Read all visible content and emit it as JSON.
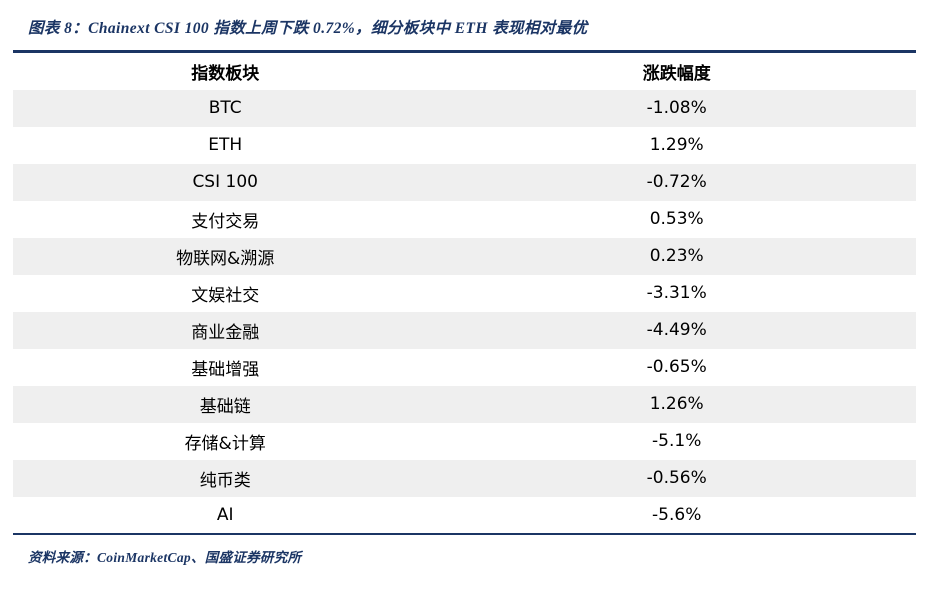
{
  "title": "图表 8：Chainext CSI 100 指数上周下跌 0.72%，细分板块中 ETH 表现相对最优",
  "source": "资料来源：CoinMarketCap、国盛证券研究所",
  "table": {
    "headers": [
      "指数板块",
      "涨跌幅度"
    ],
    "rows": [
      [
        "BTC",
        "-1.08%"
      ],
      [
        "ETH",
        "1.29%"
      ],
      [
        "CSI 100",
        "-0.72%"
      ],
      [
        "支付交易",
        "0.53%"
      ],
      [
        "物联网&溯源",
        "0.23%"
      ],
      [
        "文娱社交",
        "-3.31%"
      ],
      [
        "商业金融",
        "-4.49%"
      ],
      [
        "基础增强",
        "-0.65%"
      ],
      [
        "基础链",
        "1.26%"
      ],
      [
        "存储&计算",
        "-5.1%"
      ],
      [
        "纯币类",
        "-0.56%"
      ],
      [
        "AI",
        "-5.6%"
      ]
    ]
  },
  "chart_data": {
    "type": "table",
    "title": "Chainext CSI 100 指数上周下跌 0.72%，细分板块中 ETH 表现相对最优",
    "columns": [
      "指数板块",
      "涨跌幅度"
    ],
    "categories": [
      "BTC",
      "ETH",
      "CSI 100",
      "支付交易",
      "物联网&溯源",
      "文娱社交",
      "商业金融",
      "基础增强",
      "基础链",
      "存储&计算",
      "纯币类",
      "AI"
    ],
    "values_pct": [
      -1.08,
      1.29,
      -0.72,
      0.53,
      0.23,
      -3.31,
      -4.49,
      -0.65,
      1.26,
      -5.1,
      -0.56,
      -5.6
    ]
  },
  "colors": {
    "accent_navy": "#1b3564",
    "row_alt": "#efefef",
    "text": "#000000",
    "background": "#ffffff"
  }
}
